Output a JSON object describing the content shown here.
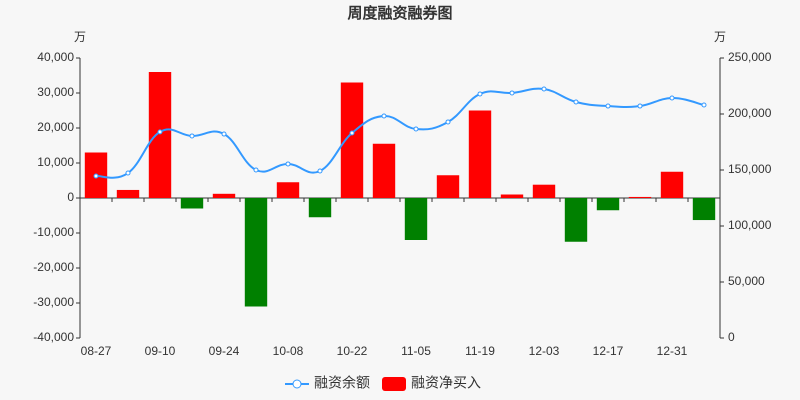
{
  "chart_data": {
    "type": "bar-line",
    "title": "周度融资融券图",
    "y_unit": "万",
    "y2_unit": "万",
    "categories": [
      "08-27",
      null,
      "09-10",
      null,
      "09-24",
      null,
      "10-08",
      null,
      "10-22",
      null,
      "11-05",
      null,
      "11-19",
      null,
      "12-03",
      null,
      "12-17",
      null,
      "12-31",
      null
    ],
    "series": [
      {
        "name": "融资余额",
        "type": "line",
        "axis": "y2",
        "color": "#3399ff",
        "values": [
          144600,
          147300,
          184000,
          180400,
          182100,
          150000,
          155400,
          149100,
          183000,
          198200,
          186600,
          192900,
          217900,
          218800,
          222300,
          210700,
          207100,
          207100,
          214300,
          208000
        ]
      },
      {
        "name": "融资净买入",
        "type": "bar",
        "axis": "y",
        "color": "#ff0000",
        "negative_color": "#008000",
        "values": [
          13000,
          2300,
          36000,
          -3000,
          1200,
          -31000,
          4500,
          -5500,
          33000,
          15500,
          -12000,
          6500,
          25000,
          1000,
          3800,
          -12500,
          -3500,
          300,
          7500,
          -6300
        ]
      }
    ],
    "ylim": [
      -40000,
      40000
    ],
    "yticks": [
      {
        "value": -40000,
        "label": "-40,000"
      },
      {
        "value": -30000,
        "label": "-30,000"
      },
      {
        "value": -20000,
        "label": "-20,000"
      },
      {
        "value": -10000,
        "label": "-10,000"
      },
      0,
      {
        "value": 10000,
        "label": "10,000"
      },
      {
        "value": 20000,
        "label": "20,000"
      },
      {
        "value": 30000,
        "label": "30,000"
      },
      {
        "value": 40000,
        "label": "40,000"
      }
    ],
    "y2lim": [
      0,
      250000
    ],
    "y2ticks": [
      0,
      {
        "value": 50000,
        "label": "50,000"
      },
      {
        "value": 100000,
        "label": "100,000"
      },
      {
        "value": 150000,
        "label": "150,000"
      },
      {
        "value": 200000,
        "label": "200,000"
      },
      {
        "value": 250000,
        "label": "250,000"
      }
    ],
    "legend": "bottom"
  }
}
